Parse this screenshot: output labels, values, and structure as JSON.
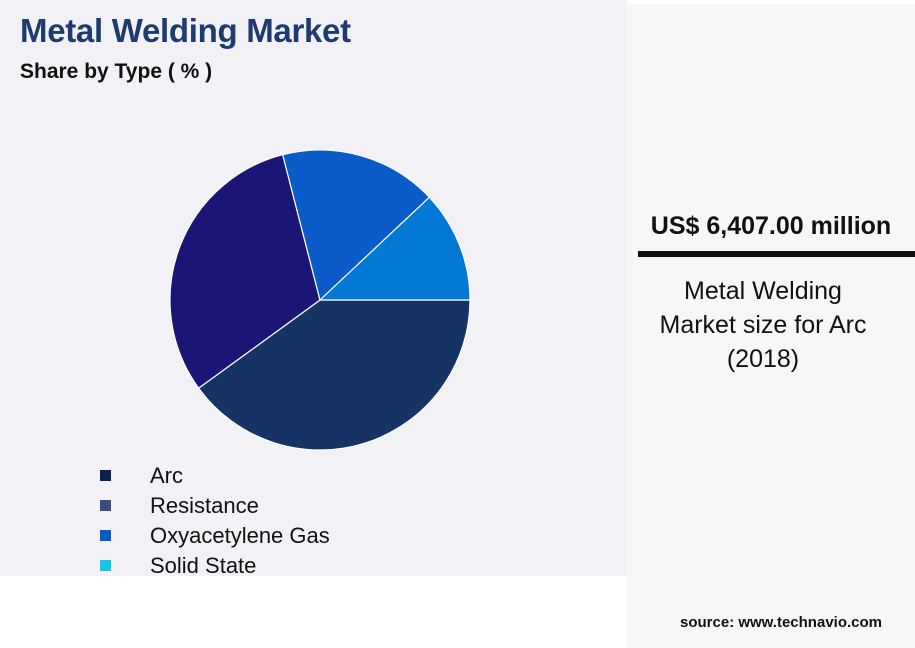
{
  "chart_data": {
    "type": "pie",
    "title": "Metal Welding Market",
    "subtitle": "Share by Type ( % )",
    "categories": [
      "Arc",
      "Resistance",
      "Oxyacetylene Gas",
      "Solid State"
    ],
    "values": [
      40,
      31,
      17,
      12
    ],
    "colors": [
      "#163463",
      "#1b1675",
      "#0a5ac7",
      "#0379d6"
    ],
    "legend": {
      "placement": "bottom-left",
      "items": [
        {
          "label": "Arc",
          "color": "#0d1f4e"
        },
        {
          "label": "Resistance",
          "color": "#3f4a7e"
        },
        {
          "label": "Oxyacetylene Gas",
          "color": "#0a5cc4"
        },
        {
          "label": "Solid State",
          "color": "#15c5e6"
        }
      ]
    }
  },
  "kpi": {
    "value": "US$ 6,407.00 million",
    "caption": "Metal Welding\nMarket size for Arc\n(2018)"
  },
  "source": "source: www.technavio.com"
}
